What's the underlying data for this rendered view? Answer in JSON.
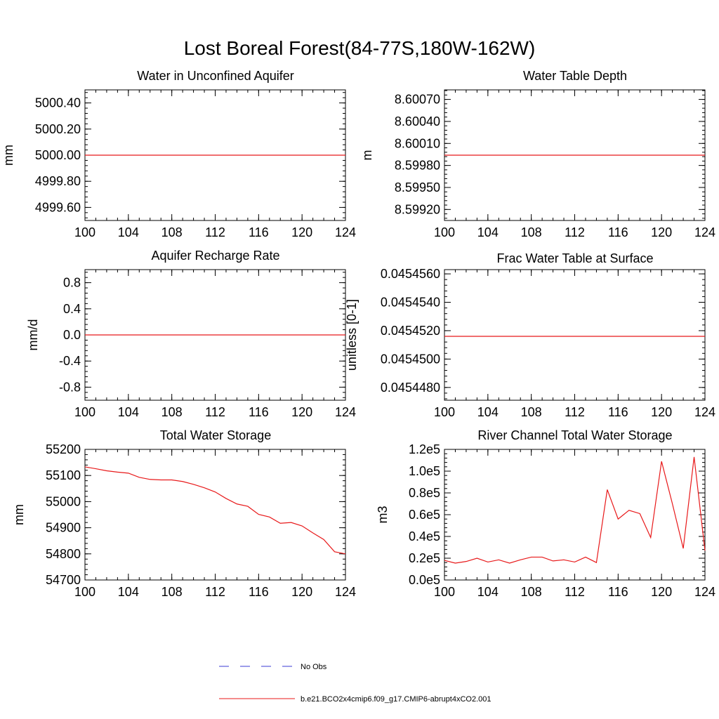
{
  "figure": {
    "title": "Lost Boreal Forest(84-77S,180W-162W)"
  },
  "legend": {
    "entries": [
      {
        "label": "No Obs",
        "color": "#3b3bd6",
        "style": "dashed"
      },
      {
        "label": "b.e21.BCO2x4cmip6.f09_g17.CMIP6-abrupt4xCO2.001",
        "color": "#e8191a",
        "style": "solid"
      }
    ]
  },
  "chart_data": [
    {
      "type": "line",
      "title": "Water in Unconfined Aquifer",
      "xlabel": "",
      "ylabel": "mm",
      "xlim": [
        100,
        124
      ],
      "ylim": [
        4999.5,
        5000.5
      ],
      "xticks": [
        100,
        104,
        108,
        112,
        116,
        120,
        124
      ],
      "xtick_labels": [
        "100",
        "104",
        "108",
        "112",
        "116",
        "120",
        "124"
      ],
      "yticks": [
        4999.6,
        4999.8,
        5000.0,
        5000.2,
        5000.4
      ],
      "ytick_labels": [
        "4999.60",
        "4999.80",
        "5000.00",
        "5000.20",
        "5000.40"
      ],
      "y_minor_step": 0.04,
      "series": [
        {
          "name": "b.e21.BCO2x4cmip6.f09_g17.CMIP6-abrupt4xCO2.001",
          "color": "#e8191a",
          "x": [
            100,
            124
          ],
          "values": [
            5000.0,
            5000.0
          ]
        }
      ]
    },
    {
      "type": "line",
      "title": "Water Table Depth",
      "xlabel": "",
      "ylabel": "m",
      "xlim": [
        100,
        124
      ],
      "ylim": [
        8.59905,
        8.60083
      ],
      "xticks": [
        100,
        104,
        108,
        112,
        116,
        120,
        124
      ],
      "xtick_labels": [
        "100",
        "104",
        "108",
        "112",
        "116",
        "120",
        "124"
      ],
      "yticks": [
        8.5992,
        8.5995,
        8.5998,
        8.6001,
        8.6004,
        8.6007
      ],
      "ytick_labels": [
        "8.59920",
        "8.59950",
        "8.59980",
        "8.60010",
        "8.60040",
        "8.60070"
      ],
      "y_minor_step": 6e-05,
      "series": [
        {
          "name": "b.e21.BCO2x4cmip6.f09_g17.CMIP6-abrupt4xCO2.001",
          "color": "#e8191a",
          "x": [
            100,
            124
          ],
          "values": [
            8.59994,
            8.59994
          ]
        }
      ]
    },
    {
      "type": "line",
      "title": "Aquifer Recharge Rate",
      "xlabel": "",
      "ylabel": "mm/d",
      "xlim": [
        100,
        124
      ],
      "ylim": [
        -1.0,
        1.0
      ],
      "xticks": [
        100,
        104,
        108,
        112,
        116,
        120,
        124
      ],
      "xtick_labels": [
        "100",
        "104",
        "108",
        "112",
        "116",
        "120",
        "124"
      ],
      "yticks": [
        -0.8,
        -0.4,
        0.0,
        0.4,
        0.8
      ],
      "ytick_labels": [
        "-0.8",
        "-0.4",
        "0.0",
        "0.4",
        "0.8"
      ],
      "y_minor_step": 0.08,
      "series": [
        {
          "name": "b.e21.BCO2x4cmip6.f09_g17.CMIP6-abrupt4xCO2.001",
          "color": "#e8191a",
          "x": [
            100,
            124
          ],
          "values": [
            0.0,
            0.0
          ]
        }
      ]
    },
    {
      "type": "line",
      "title": "Frac Water Table at Surface",
      "xlabel": "",
      "ylabel": "unitless [0-1]",
      "xlim": [
        100,
        124
      ],
      "ylim": [
        0.0454471,
        0.0454563
      ],
      "xticks": [
        100,
        104,
        108,
        112,
        116,
        120,
        124
      ],
      "xtick_labels": [
        "100",
        "104",
        "108",
        "112",
        "116",
        "120",
        "124"
      ],
      "yticks": [
        0.045448,
        0.04545,
        0.045452,
        0.045454,
        0.045456
      ],
      "ytick_labels": [
        "0.0454480",
        "0.0454500",
        "0.0454520",
        "0.0454540",
        "0.0454560"
      ],
      "y_minor_step": 4e-07,
      "series": [
        {
          "name": "b.e21.BCO2x4cmip6.f09_g17.CMIP6-abrupt4xCO2.001",
          "color": "#e8191a",
          "x": [
            100,
            124
          ],
          "values": [
            0.0454516,
            0.0454516
          ]
        }
      ]
    },
    {
      "type": "line",
      "title": "Total Water Storage",
      "xlabel": "",
      "ylabel": "mm",
      "xlim": [
        100,
        124
      ],
      "ylim": [
        54700,
        55200
      ],
      "xticks": [
        100,
        104,
        108,
        112,
        116,
        120,
        124
      ],
      "xtick_labels": [
        "100",
        "104",
        "108",
        "112",
        "116",
        "120",
        "124"
      ],
      "yticks": [
        54700,
        54800,
        54900,
        55000,
        55100,
        55200
      ],
      "ytick_labels": [
        "54700",
        "54800",
        "54900",
        "55000",
        "55100",
        "55200"
      ],
      "y_minor_step": 20,
      "series": [
        {
          "name": "b.e21.BCO2x4cmip6.f09_g17.CMIP6-abrupt4xCO2.001",
          "color": "#e8191a",
          "x": [
            100,
            101,
            102,
            103,
            104,
            105,
            106,
            107,
            108,
            109,
            110,
            111,
            112,
            113,
            114,
            115,
            116,
            117,
            118,
            119,
            120,
            121,
            122,
            123,
            124
          ],
          "values": [
            55133,
            55126,
            55118,
            55113,
            55109,
            55093,
            55085,
            55083,
            55083,
            55077,
            55066,
            55053,
            55037,
            55012,
            54991,
            54982,
            54951,
            54941,
            54917,
            54920,
            54907,
            54880,
            54855,
            54808,
            54800
          ]
        }
      ]
    },
    {
      "type": "line",
      "title": "River Channel Total Water Storage",
      "xlabel": "",
      "ylabel": "m3",
      "xlim": [
        100,
        124
      ],
      "ylim": [
        0,
        120000
      ],
      "xticks": [
        100,
        104,
        108,
        112,
        116,
        120,
        124
      ],
      "xtick_labels": [
        "100",
        "104",
        "108",
        "112",
        "116",
        "120",
        "124"
      ],
      "yticks": [
        0,
        20000,
        40000,
        60000,
        80000,
        100000,
        120000
      ],
      "ytick_labels": [
        "0.0e5",
        "0.2e5",
        "0.4e5",
        "0.6e5",
        "0.8e5",
        "1.0e5",
        "1.2e5"
      ],
      "y_minor_step": 4000,
      "series": [
        {
          "name": "b.e21.BCO2x4cmip6.f09_g17.CMIP6-abrupt4xCO2.001",
          "color": "#e8191a",
          "x": [
            100,
            101,
            102,
            103,
            104,
            105,
            106,
            107,
            108,
            109,
            110,
            111,
            112,
            113,
            114,
            115,
            116,
            117,
            118,
            119,
            120,
            121,
            122,
            123,
            124
          ],
          "values": [
            18000,
            15500,
            17000,
            20000,
            16500,
            18500,
            15500,
            18500,
            21000,
            21000,
            17500,
            18500,
            16500,
            21000,
            16000,
            83000,
            56000,
            64000,
            61000,
            39000,
            109000,
            70000,
            29000,
            113000,
            27000
          ]
        }
      ]
    }
  ]
}
